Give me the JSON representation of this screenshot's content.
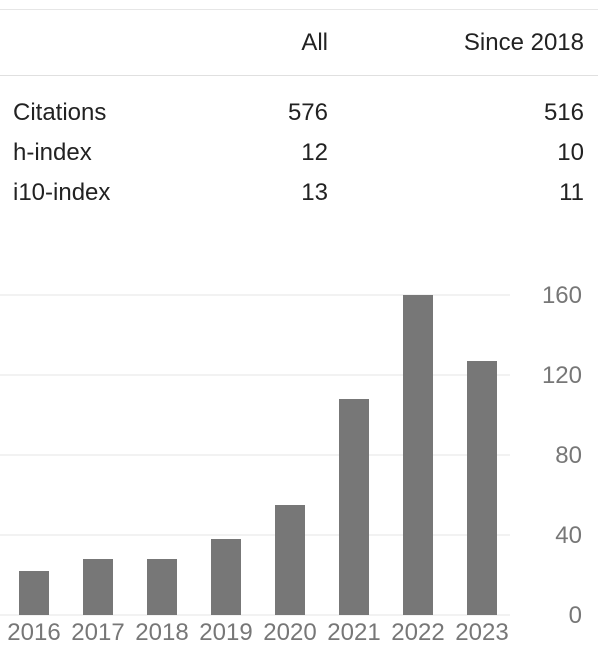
{
  "table": {
    "headers": {
      "label": "",
      "all": "All",
      "since": "Since 2018"
    },
    "rows": [
      {
        "label": "Citations",
        "all": "576",
        "since": "516"
      },
      {
        "label": "h-index",
        "all": "12",
        "since": "10"
      },
      {
        "label": "i10-index",
        "all": "13",
        "since": "11"
      }
    ]
  },
  "chart_data": {
    "type": "bar",
    "categories": [
      "2016",
      "2017",
      "2018",
      "2019",
      "2020",
      "2021",
      "2022",
      "2023"
    ],
    "values": [
      22,
      28,
      28,
      38,
      55,
      108,
      160,
      127
    ],
    "title": "",
    "xlabel": "",
    "ylabel": "",
    "ylim": [
      0,
      160
    ],
    "yticks": [
      0,
      40,
      80,
      120,
      160
    ],
    "y_axis_position": "right",
    "grid": true,
    "legend": "none",
    "bar_color": "#777777",
    "grid_color": "#e6e6e6"
  }
}
